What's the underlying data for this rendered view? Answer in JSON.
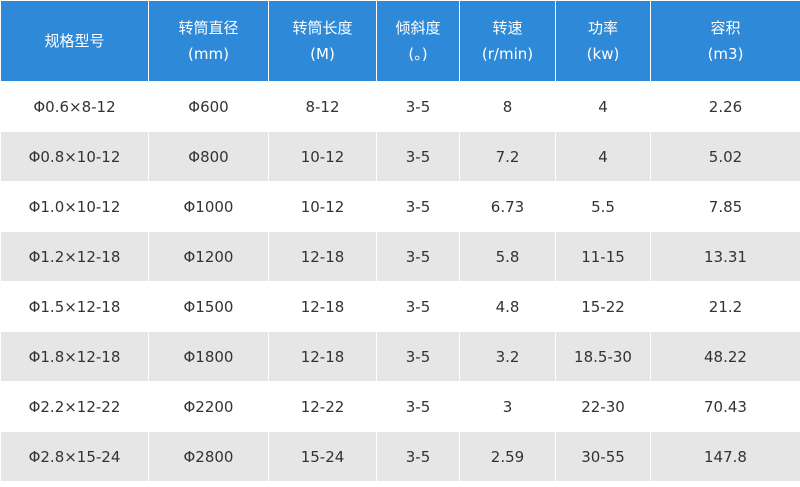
{
  "table": {
    "header": [
      [
        "规格型号"
      ],
      [
        "转筒直径",
        "(mm)"
      ],
      [
        "转筒长度",
        "(M)"
      ],
      [
        "倾斜度",
        "(。)"
      ],
      [
        "转速",
        "(r/min)"
      ],
      [
        "功率",
        "(kw)"
      ],
      [
        "容积",
        "(m3)"
      ]
    ],
    "rows": [
      [
        "Φ0.6×8-12",
        "Φ600",
        "8-12",
        "3-5",
        "8",
        "4",
        "2.26"
      ],
      [
        "Φ0.8×10-12",
        "Φ800",
        "10-12",
        "3-5",
        "7.2",
        "4",
        "5.02"
      ],
      [
        "Φ1.0×10-12",
        "Φ1000",
        "10-12",
        "3-5",
        "6.73",
        "5.5",
        "7.85"
      ],
      [
        "Φ1.2×12-18",
        "Φ1200",
        "12-18",
        "3-5",
        "5.8",
        "11-15",
        "13.31"
      ],
      [
        "Φ1.5×12-18",
        "Φ1500",
        "12-18",
        "3-5",
        "4.8",
        "15-22",
        "21.2"
      ],
      [
        "Φ1.8×12-18",
        "Φ1800",
        "12-18",
        "3-5",
        "3.2",
        "18.5-30",
        "48.22"
      ],
      [
        "Φ2.2×12-22",
        "Φ2200",
        "12-22",
        "3-5",
        "3",
        "22-30",
        "70.43"
      ],
      [
        "Φ2.8×15-24",
        "Φ2800",
        "15-24",
        "3-5",
        "2.59",
        "30-55",
        "147.8"
      ]
    ]
  }
}
